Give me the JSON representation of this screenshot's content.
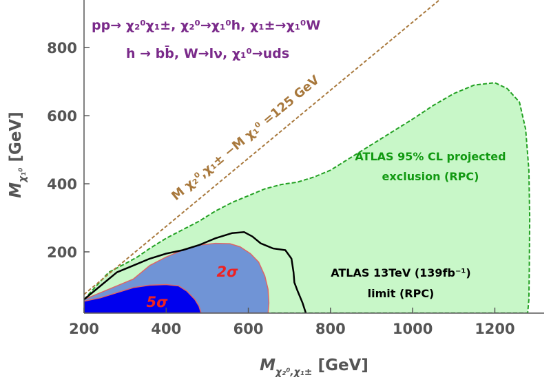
{
  "chart_data": {
    "type": "area",
    "xlim": [
      200,
      1320
    ],
    "ylim": [
      20,
      940
    ],
    "xticks": [
      "200",
      "400",
      "600",
      "800",
      "1000",
      "1200"
    ],
    "yticks": [
      "200",
      "400",
      "600",
      "800"
    ],
    "xlabel": {
      "main": "M",
      "sub": "χ₂⁰,χ₁±",
      "unit": "[GeV]"
    },
    "ylabel": {
      "main": "M",
      "sub": "χ₁⁰",
      "unit": "[GeV]"
    },
    "process_line1": "pp→ χ₂⁰χ₁±, χ₂⁰→χ₁⁰h, χ₁±→χ₁⁰W",
    "process_line2": "h → bb̄, W→lν, χ₁⁰→uds",
    "diagonal_label": "M χ₂⁰,χ₁± −M χ₁⁰ =125 GeV",
    "diagonal_offset": 125,
    "regions": [
      {
        "name": "ATLAS 95% CL projected exclusion (RPC)",
        "label_line1": "ATLAS 95% CL projected",
        "label_line2": "exclusion (RPC)",
        "fill": "#c8f7c8",
        "stroke": "#22a022",
        "dashed": true,
        "points": [
          [
            200,
            60
          ],
          [
            230,
            100
          ],
          [
            260,
            140
          ],
          [
            300,
            165
          ],
          [
            330,
            185
          ],
          [
            360,
            210
          ],
          [
            400,
            240
          ],
          [
            440,
            265
          ],
          [
            480,
            290
          ],
          [
            520,
            320
          ],
          [
            560,
            345
          ],
          [
            600,
            365
          ],
          [
            640,
            385
          ],
          [
            680,
            398
          ],
          [
            720,
            405
          ],
          [
            760,
            420
          ],
          [
            800,
            440
          ],
          [
            840,
            470
          ],
          [
            880,
            500
          ],
          [
            920,
            530
          ],
          [
            960,
            560
          ],
          [
            1000,
            590
          ],
          [
            1050,
            630
          ],
          [
            1100,
            665
          ],
          [
            1150,
            690
          ],
          [
            1200,
            697
          ],
          [
            1230,
            680
          ],
          [
            1260,
            640
          ],
          [
            1275,
            560
          ],
          [
            1283,
            440
          ],
          [
            1285,
            300
          ],
          [
            1284,
            150
          ],
          [
            1283,
            60
          ],
          [
            1280,
            20
          ],
          [
            200,
            20
          ]
        ]
      },
      {
        "name": "2σ",
        "label": "2σ",
        "fill": "#7094d6",
        "stroke": "#dd6666",
        "dashed": false,
        "points": [
          [
            200,
            60
          ],
          [
            240,
            80
          ],
          [
            280,
            100
          ],
          [
            320,
            120
          ],
          [
            360,
            160
          ],
          [
            400,
            185
          ],
          [
            440,
            205
          ],
          [
            480,
            220
          ],
          [
            520,
            225
          ],
          [
            555,
            224
          ],
          [
            580,
            215
          ],
          [
            605,
            195
          ],
          [
            625,
            170
          ],
          [
            640,
            130
          ],
          [
            648,
            90
          ],
          [
            650,
            50
          ],
          [
            648,
            20
          ],
          [
            200,
            20
          ]
        ]
      },
      {
        "name": "5σ",
        "label": "5σ",
        "fill": "#0000ee",
        "stroke": "#dd6666",
        "dashed": false,
        "points": [
          [
            200,
            55
          ],
          [
            240,
            65
          ],
          [
            280,
            80
          ],
          [
            320,
            95
          ],
          [
            360,
            102
          ],
          [
            400,
            104
          ],
          [
            430,
            100
          ],
          [
            450,
            85
          ],
          [
            470,
            60
          ],
          [
            480,
            40
          ],
          [
            485,
            20
          ],
          [
            200,
            20
          ]
        ]
      }
    ],
    "atlas_limit": {
      "name": "ATLAS 13TeV (139fb⁻¹) limit (RPC)",
      "label_line1": "ATLAS 13TeV (139fb⁻¹)",
      "label_line2": "limit (RPC)",
      "stroke": "#000000",
      "points": [
        [
          200,
          60
        ],
        [
          240,
          100
        ],
        [
          280,
          140
        ],
        [
          320,
          160
        ],
        [
          360,
          180
        ],
        [
          400,
          195
        ],
        [
          440,
          205
        ],
        [
          480,
          220
        ],
        [
          520,
          240
        ],
        [
          560,
          255
        ],
        [
          590,
          258
        ],
        [
          610,
          245
        ],
        [
          630,
          225
        ],
        [
          660,
          210
        ],
        [
          690,
          205
        ],
        [
          705,
          180
        ],
        [
          710,
          140
        ],
        [
          712,
          110
        ],
        [
          720,
          85
        ],
        [
          732,
          50
        ],
        [
          740,
          20
        ]
      ]
    },
    "colors": {
      "title_purple": "#7a2a8a",
      "diagonal_brown": "#a8783c",
      "atlas_green_text": "#119911",
      "sigma_red": "#ee2222"
    }
  }
}
